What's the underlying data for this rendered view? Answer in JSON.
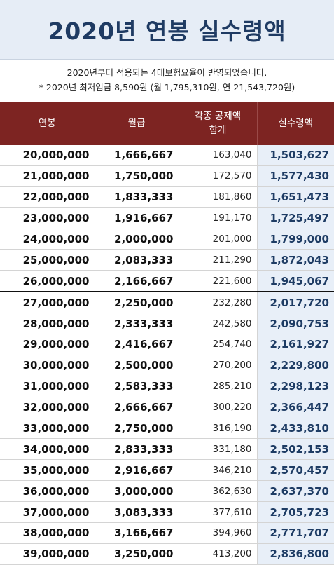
{
  "title": "2020년 연봉 실수령액",
  "notes": [
    "2020년부터 적용되는 4대보험요율이 반영되었습니다.",
    "* 2020년 최저임금 8,590원 (월 1,795,310원, 연 21,543,720원)"
  ],
  "table": {
    "headers": [
      "연봉",
      "월급",
      "각종 공제액\n합계",
      "실수령액"
    ],
    "rows": [
      [
        "20,000,000",
        "1,666,667",
        "163,040",
        "1,503,627"
      ],
      [
        "21,000,000",
        "1,750,000",
        "172,570",
        "1,577,430"
      ],
      [
        "22,000,000",
        "1,833,333",
        "181,860",
        "1,651,473"
      ],
      [
        "23,000,000",
        "1,916,667",
        "191,170",
        "1,725,497"
      ],
      [
        "24,000,000",
        "2,000,000",
        "201,000",
        "1,799,000"
      ],
      [
        "25,000,000",
        "2,083,333",
        "211,290",
        "1,872,043"
      ],
      [
        "26,000,000",
        "2,166,667",
        "221,600",
        "1,945,067"
      ],
      [
        "27,000,000",
        "2,250,000",
        "232,280",
        "2,017,720"
      ],
      [
        "28,000,000",
        "2,333,333",
        "242,580",
        "2,090,753"
      ],
      [
        "29,000,000",
        "2,416,667",
        "254,740",
        "2,161,927"
      ],
      [
        "30,000,000",
        "2,500,000",
        "270,200",
        "2,229,800"
      ],
      [
        "31,000,000",
        "2,583,333",
        "285,210",
        "2,298,123"
      ],
      [
        "32,000,000",
        "2,666,667",
        "300,220",
        "2,366,447"
      ],
      [
        "33,000,000",
        "2,750,000",
        "316,190",
        "2,433,810"
      ],
      [
        "34,000,000",
        "2,833,333",
        "331,180",
        "2,502,153"
      ],
      [
        "35,000,000",
        "2,916,667",
        "346,210",
        "2,570,457"
      ],
      [
        "36,000,000",
        "3,000,000",
        "362,630",
        "2,637,370"
      ],
      [
        "37,000,000",
        "3,083,333",
        "377,610",
        "2,705,723"
      ],
      [
        "38,000,000",
        "3,166,667",
        "394,960",
        "2,771,707"
      ],
      [
        "39,000,000",
        "3,250,000",
        "413,200",
        "2,836,800"
      ]
    ],
    "divider_after_row": 7
  },
  "colors": {
    "header_bg": "#7d2422",
    "title_band_bg": "#e6edf6",
    "title_text": "#1f3b63",
    "net_column_bg": "#e8eff8",
    "net_column_text": "#1e3c64"
  }
}
